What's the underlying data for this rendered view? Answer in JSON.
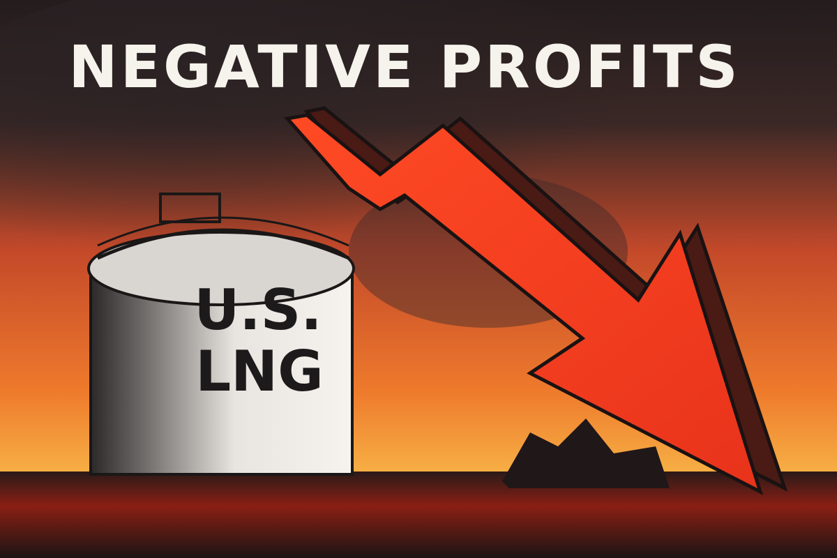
{
  "title": "NEGATIVE PROFITS",
  "tank": {
    "label_lines": [
      "U.S.",
      "LNG"
    ]
  }
}
